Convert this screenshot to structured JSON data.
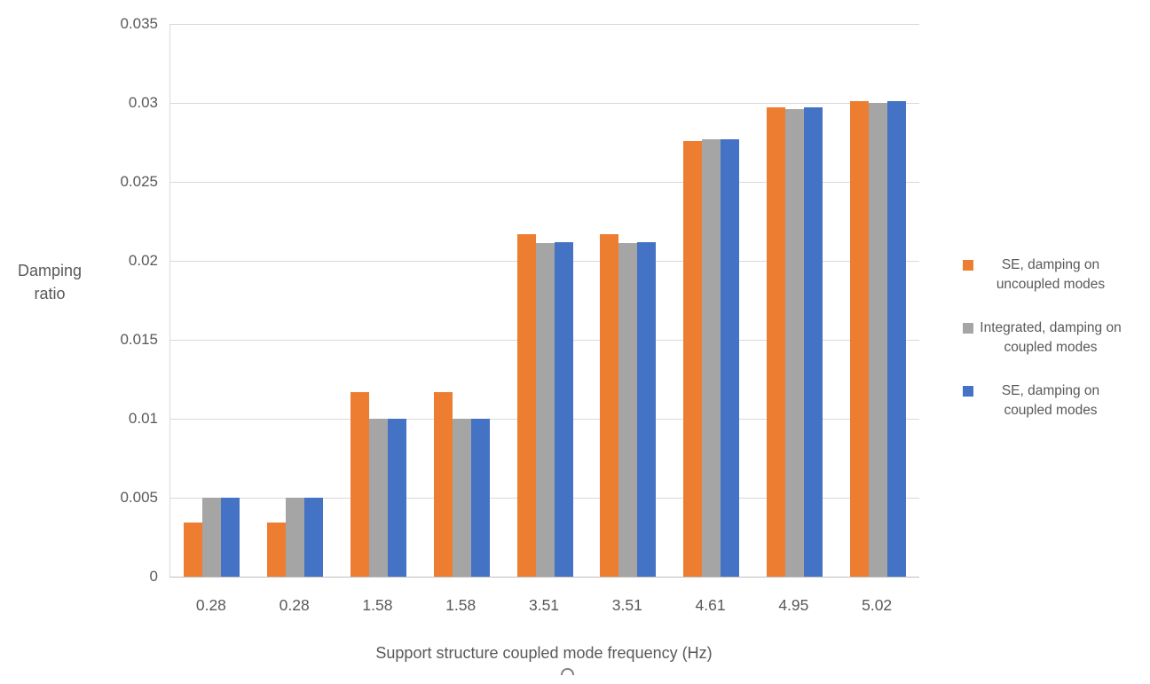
{
  "chart_data": {
    "type": "bar",
    "title": "",
    "categories": [
      "0.28",
      "0.28",
      "1.58",
      "1.58",
      "3.51",
      "3.51",
      "4.61",
      "4.95",
      "5.02"
    ],
    "series": [
      {
        "name": "SE, damping on uncoupled modes",
        "color": "#ED7D31",
        "values": [
          0.0034,
          0.0034,
          0.0117,
          0.0117,
          0.0217,
          0.0217,
          0.0276,
          0.0297,
          0.0301
        ]
      },
      {
        "name": "Integrated, damping on coupled modes",
        "color": "#A5A5A5",
        "values": [
          0.005,
          0.005,
          0.01,
          0.01,
          0.0211,
          0.0211,
          0.0277,
          0.0296,
          0.03
        ]
      },
      {
        "name": "SE, damping on coupled modes",
        "color": "#4472C4",
        "values": [
          0.005,
          0.005,
          0.01,
          0.01,
          0.0212,
          0.0212,
          0.0277,
          0.0297,
          0.0301
        ]
      }
    ],
    "xlabel": "Support structure coupled mode frequency (Hz)",
    "ylabel": "Damping ratio",
    "ylim": [
      0,
      0.035
    ],
    "yticks": [
      0,
      0.005,
      0.01,
      0.015,
      0.02,
      0.025,
      0.03,
      0.035
    ],
    "ytick_labels": [
      "0",
      "0.005",
      "0.01",
      "0.015",
      "0.02",
      "0.025",
      "0.03",
      "0.035"
    ],
    "grid": "horizontal",
    "legend_position": "right",
    "gridline_color": "#D9D9D9",
    "axis_line_color": "#BFBFBF",
    "text_color": "#595959"
  }
}
